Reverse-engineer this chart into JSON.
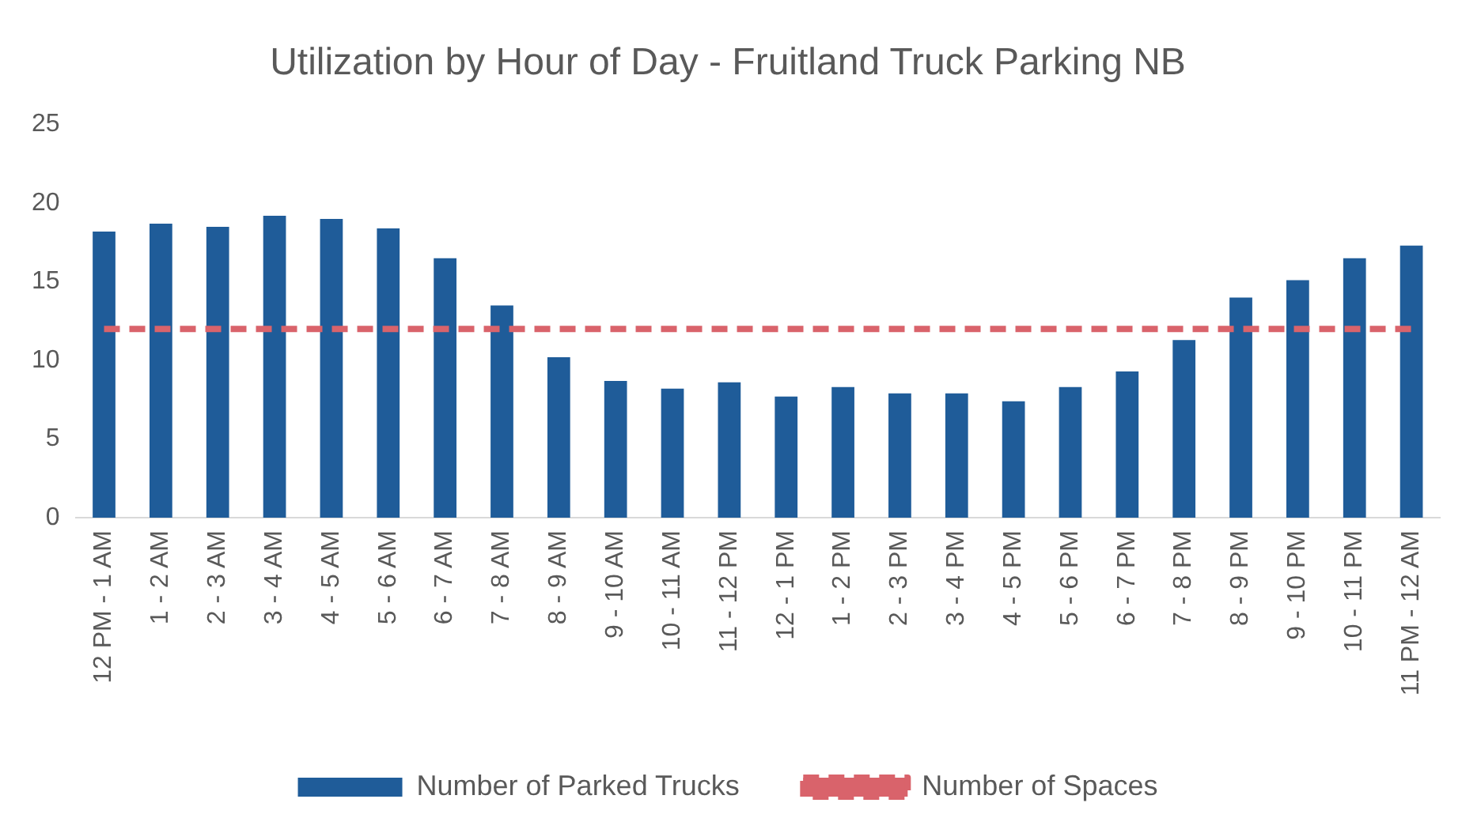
{
  "chart_data": {
    "type": "bar",
    "title": "Utilization by Hour of Day - Fruitland Truck Parking NB",
    "categories": [
      "12 PM - 1 AM",
      "1 - 2 AM",
      "2 - 3 AM",
      "3 - 4 AM",
      "4 - 5 AM",
      "5 - 6 AM",
      "6 - 7 AM",
      "7 - 8 AM",
      "8 - 9 AM",
      "9 - 10 AM",
      "10 - 11 AM",
      "11 - 12 PM",
      "12 - 1 PM",
      "1 - 2 PM",
      "2 - 3 PM",
      "3 - 4 PM",
      "4 - 5 PM",
      "5 - 6 PM",
      "6 - 7 PM",
      "7 - 8 PM",
      "8 - 9 PM",
      "9 - 10 PM",
      "10 - 11 PM",
      "11 PM - 12 AM"
    ],
    "series": [
      {
        "name": "Number of Parked Trucks",
        "color": "#1f5c99",
        "values": [
          18.2,
          18.7,
          18.5,
          19.2,
          19.0,
          18.4,
          16.5,
          13.5,
          10.2,
          8.7,
          8.2,
          8.6,
          7.7,
          8.3,
          7.9,
          7.9,
          7.4,
          8.3,
          9.3,
          11.3,
          14.0,
          15.1,
          16.5,
          17.3
        ]
      },
      {
        "name": "Number of Spaces",
        "type": "line",
        "color": "#d9636b",
        "line_style": "dashed",
        "marker": "none",
        "values": [
          12,
          12,
          12,
          12,
          12,
          12,
          12,
          12,
          12,
          12,
          12,
          12,
          12,
          12,
          12,
          12,
          12,
          12,
          12,
          12,
          12,
          12,
          12,
          12
        ]
      }
    ],
    "ylim": [
      0,
      25
    ],
    "yticks": [
      0,
      5,
      10,
      15,
      20,
      25
    ],
    "grid": false,
    "legend": "bottom"
  }
}
